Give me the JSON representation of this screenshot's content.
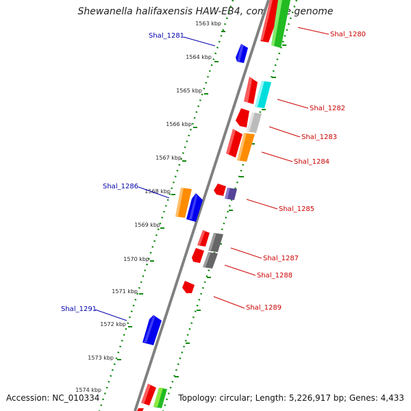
{
  "title": "Shewanella halifaxensis HAW-EB4, complete genome",
  "footer": {
    "accession": "Accession: NC_010334",
    "topology": "Topology: circular; Length: 5,226,917 bp; Genes: 4,433"
  },
  "ticks": [
    "1563 kbp",
    "1564 kbp",
    "1565 kbp",
    "1566 kbp",
    "1567 kbp",
    "1568 kbp",
    "1569 kbp",
    "1570 kbp",
    "1571 kbp",
    "1572 kbp",
    "1573 kbp",
    "1574 kbp"
  ],
  "gene_labels": {
    "shal_1280": "Shal_1280",
    "shal_1281": "Shal_1281",
    "shal_1282": "Shal_1282",
    "shal_1283": "Shal_1283",
    "shal_1284": "Shal_1284",
    "shal_1285": "Shal_1285",
    "shal_1286": "Shal_1286",
    "shal_1287": "Shal_1287",
    "shal_1288": "Shal_1288",
    "shal_1289": "Shal_1289",
    "shal_1291": "Shal_1291"
  },
  "colors": {
    "backbone": "#808080",
    "track_dots": "#118811",
    "forward_label": "#cc0000",
    "reverse_label": "#0000aa",
    "red": "#ee0000",
    "blue": "#0000ee",
    "green": "#22bb22",
    "cyan": "#00dddd",
    "orange": "#ff8c00",
    "gray": "#bbbbbb",
    "dark_gray": "#666666",
    "purple": "#554499",
    "light_green": "#99ee44"
  }
}
